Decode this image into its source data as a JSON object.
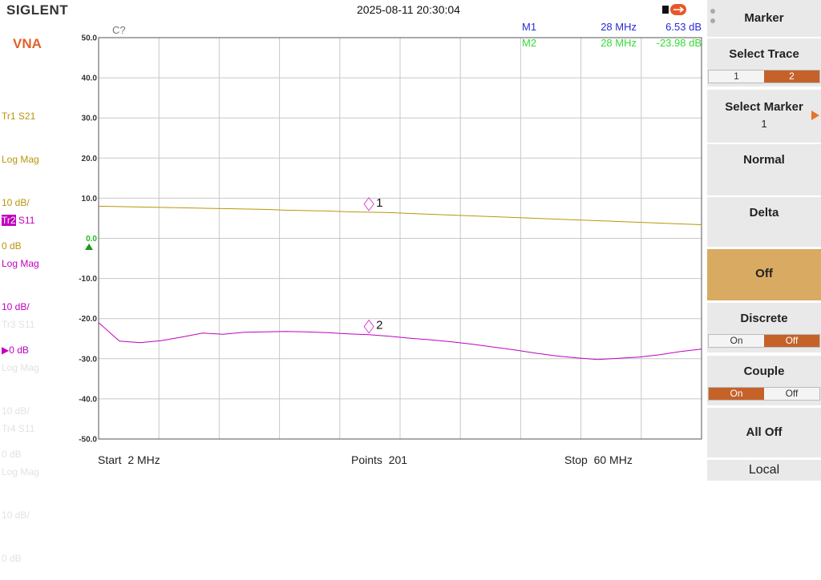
{
  "header": {
    "brand": "SIGLENT",
    "datetime": "2025-08-11 20:30:04"
  },
  "mode": "VNA",
  "inactive_traces": [
    {
      "name": "Tr3",
      "param": "S11",
      "format": "Log Mag",
      "scale": "10 dB/",
      "ref": "0 dB"
    },
    {
      "name": "Tr4",
      "param": "S11",
      "format": "Log Mag",
      "scale": "10 dB/",
      "ref": "0 dB"
    }
  ],
  "chart_data": {
    "type": "line",
    "annotation": "C?",
    "x": [
      2,
      4,
      6,
      8,
      10,
      12,
      14,
      16,
      18,
      20,
      22,
      24,
      26,
      28,
      30,
      32,
      34,
      36,
      38,
      40,
      42,
      44,
      46,
      48,
      50,
      52,
      54,
      56,
      58,
      60
    ],
    "xlim": [
      2,
      60
    ],
    "xticks": [
      2,
      7.8,
      13.6,
      19.4,
      25.2,
      31,
      36.8,
      42.6,
      48.4,
      54.2,
      60
    ],
    "ylim": [
      -50,
      50
    ],
    "yticks": [
      {
        "value": 50,
        "label": "50.0"
      },
      {
        "value": 40,
        "label": "40.0"
      },
      {
        "value": 30,
        "label": "30.0"
      },
      {
        "value": 20,
        "label": "20.0"
      },
      {
        "value": 10,
        "label": "10.0"
      },
      {
        "value": 0,
        "label": "0.0"
      },
      {
        "value": -10,
        "label": "-10.0"
      },
      {
        "value": -20,
        "label": "-20.0"
      },
      {
        "value": -30,
        "label": "-30.0"
      },
      {
        "value": -40,
        "label": "-40.0"
      },
      {
        "value": -50,
        "label": "-50.0"
      }
    ],
    "grid": true,
    "series": [
      {
        "name": "Tr1",
        "param": "S21",
        "format": "Log Mag",
        "scale": "10 dB/",
        "ref": "0 dB",
        "color": "#b8960c",
        "values": [
          8.0,
          7.9,
          7.8,
          7.7,
          7.6,
          7.5,
          7.4,
          7.3,
          7.2,
          7.0,
          6.9,
          6.8,
          6.6,
          6.5,
          6.4,
          6.2,
          6.0,
          5.8,
          5.6,
          5.4,
          5.2,
          5.0,
          4.8,
          4.6,
          4.4,
          4.2,
          4.0,
          3.8,
          3.6,
          3.4
        ]
      },
      {
        "name": "Tr2",
        "param": "S11",
        "format": "Log Mag",
        "scale": "10 dB/",
        "ref": "0 dB",
        "color": "#c000c0",
        "values": [
          -21.0,
          -25.6,
          -26.0,
          -25.5,
          -24.6,
          -23.6,
          -23.9,
          -23.4,
          -23.3,
          -23.2,
          -23.3,
          -23.5,
          -23.8,
          -24.0,
          -24.4,
          -24.9,
          -25.3,
          -25.8,
          -26.4,
          -27.1,
          -27.8,
          -28.6,
          -29.3,
          -29.8,
          -30.2,
          -29.9,
          -29.6,
          -29.0,
          -28.2,
          -27.6
        ]
      }
    ],
    "markers": [
      {
        "name": "M1",
        "label": "1",
        "series": 0,
        "x": 28,
        "x_label": "28 MHz",
        "value": 6.53,
        "value_label": "6.53 dB",
        "color": "#2a2ad8"
      },
      {
        "name": "M2",
        "label": "2",
        "series": 1,
        "x": 28,
        "x_label": "28 MHz",
        "value": -23.98,
        "value_label": "-23.98 dB",
        "color": "#33dd33"
      }
    ]
  },
  "footer": {
    "start": "Start  2 MHz",
    "points": "Points  201",
    "stop": "Stop  60 MHz"
  },
  "menu": {
    "title": "Marker",
    "select_trace": "Select Trace",
    "trace_options": [
      "1",
      "2"
    ],
    "select_marker": "Select Marker",
    "marker_value": "1",
    "normal": "Normal",
    "delta": "Delta",
    "off": "Off",
    "discrete": "Discrete",
    "discrete_options": [
      "On",
      "Off"
    ],
    "couple": "Couple",
    "couple_options": [
      "On",
      "Off"
    ],
    "all_off": "All Off",
    "local": "Local"
  }
}
